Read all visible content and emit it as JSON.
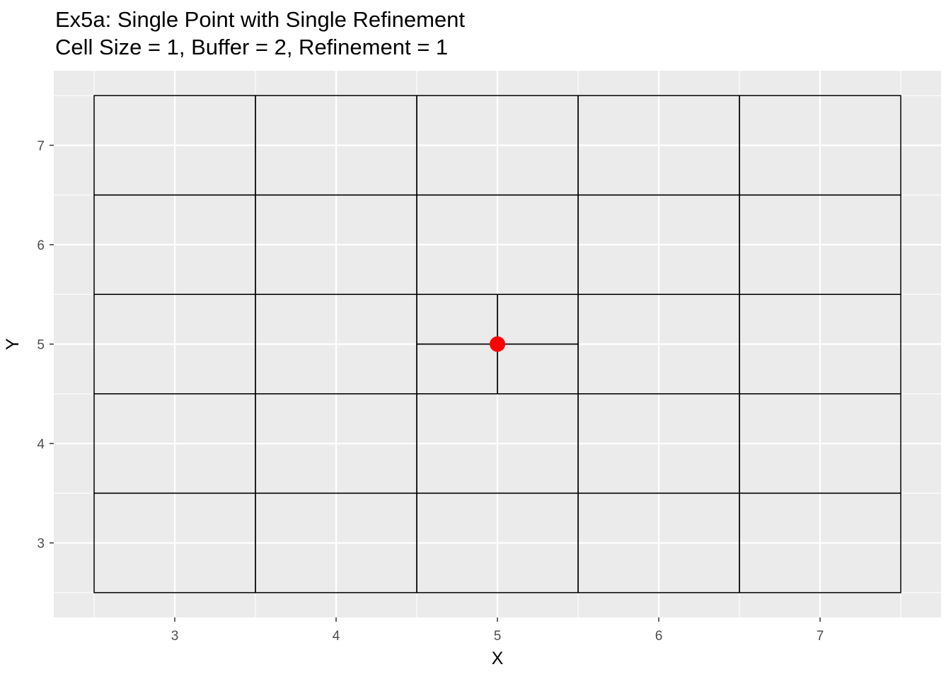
{
  "chart_data": {
    "type": "scatter",
    "title": "Ex5a: Single Point with Single Refinement",
    "subtitle": "Cell Size = 1, Buffer = 2, Refinement = 1",
    "xlabel": "X",
    "ylabel": "Y",
    "xlim": [
      2.25,
      7.75
    ],
    "ylim": [
      2.25,
      7.75
    ],
    "x_ticks": [
      3,
      4,
      5,
      6,
      7
    ],
    "y_ticks": [
      3,
      4,
      5,
      6,
      7
    ],
    "x_tick_labels": [
      "3",
      "4",
      "5",
      "6",
      "7"
    ],
    "y_tick_labels": [
      "3",
      "4",
      "5",
      "6",
      "7"
    ],
    "grid": true,
    "points": [
      {
        "x": 5,
        "y": 5
      }
    ],
    "point_color": "#ff0000",
    "grid_cells": [
      {
        "xmin": 2.5,
        "xmax": 3.5,
        "ymin": 2.5,
        "ymax": 3.5
      },
      {
        "xmin": 3.5,
        "xmax": 4.5,
        "ymin": 2.5,
        "ymax": 3.5
      },
      {
        "xmin": 4.5,
        "xmax": 5.5,
        "ymin": 2.5,
        "ymax": 3.5
      },
      {
        "xmin": 5.5,
        "xmax": 6.5,
        "ymin": 2.5,
        "ymax": 3.5
      },
      {
        "xmin": 6.5,
        "xmax": 7.5,
        "ymin": 2.5,
        "ymax": 3.5
      },
      {
        "xmin": 2.5,
        "xmax": 3.5,
        "ymin": 3.5,
        "ymax": 4.5
      },
      {
        "xmin": 3.5,
        "xmax": 4.5,
        "ymin": 3.5,
        "ymax": 4.5
      },
      {
        "xmin": 4.5,
        "xmax": 5.5,
        "ymin": 3.5,
        "ymax": 4.5
      },
      {
        "xmin": 5.5,
        "xmax": 6.5,
        "ymin": 3.5,
        "ymax": 4.5
      },
      {
        "xmin": 6.5,
        "xmax": 7.5,
        "ymin": 3.5,
        "ymax": 4.5
      },
      {
        "xmin": 2.5,
        "xmax": 3.5,
        "ymin": 4.5,
        "ymax": 5.5
      },
      {
        "xmin": 3.5,
        "xmax": 4.5,
        "ymin": 4.5,
        "ymax": 5.5
      },
      {
        "xmin": 4.5,
        "xmax": 5.0,
        "ymin": 4.5,
        "ymax": 5.0
      },
      {
        "xmin": 5.0,
        "xmax": 5.5,
        "ymin": 4.5,
        "ymax": 5.0
      },
      {
        "xmin": 4.5,
        "xmax": 5.0,
        "ymin": 5.0,
        "ymax": 5.5
      },
      {
        "xmin": 5.0,
        "xmax": 5.5,
        "ymin": 5.0,
        "ymax": 5.5
      },
      {
        "xmin": 5.5,
        "xmax": 6.5,
        "ymin": 4.5,
        "ymax": 5.5
      },
      {
        "xmin": 6.5,
        "xmax": 7.5,
        "ymin": 4.5,
        "ymax": 5.5
      },
      {
        "xmin": 2.5,
        "xmax": 3.5,
        "ymin": 5.5,
        "ymax": 6.5
      },
      {
        "xmin": 3.5,
        "xmax": 4.5,
        "ymin": 5.5,
        "ymax": 6.5
      },
      {
        "xmin": 4.5,
        "xmax": 5.5,
        "ymin": 5.5,
        "ymax": 6.5
      },
      {
        "xmin": 5.5,
        "xmax": 6.5,
        "ymin": 5.5,
        "ymax": 6.5
      },
      {
        "xmin": 6.5,
        "xmax": 7.5,
        "ymin": 5.5,
        "ymax": 6.5
      },
      {
        "xmin": 2.5,
        "xmax": 3.5,
        "ymin": 6.5,
        "ymax": 7.5
      },
      {
        "xmin": 3.5,
        "xmax": 4.5,
        "ymin": 6.5,
        "ymax": 7.5
      },
      {
        "xmin": 4.5,
        "xmax": 5.5,
        "ymin": 6.5,
        "ymax": 7.5
      },
      {
        "xmin": 5.5,
        "xmax": 6.5,
        "ymin": 6.5,
        "ymax": 7.5
      },
      {
        "xmin": 6.5,
        "xmax": 7.5,
        "ymin": 6.5,
        "ymax": 7.5
      }
    ],
    "panel_color": "#ebebeb",
    "gridline_color": "#ffffff",
    "cell_line_color": "#000000"
  }
}
